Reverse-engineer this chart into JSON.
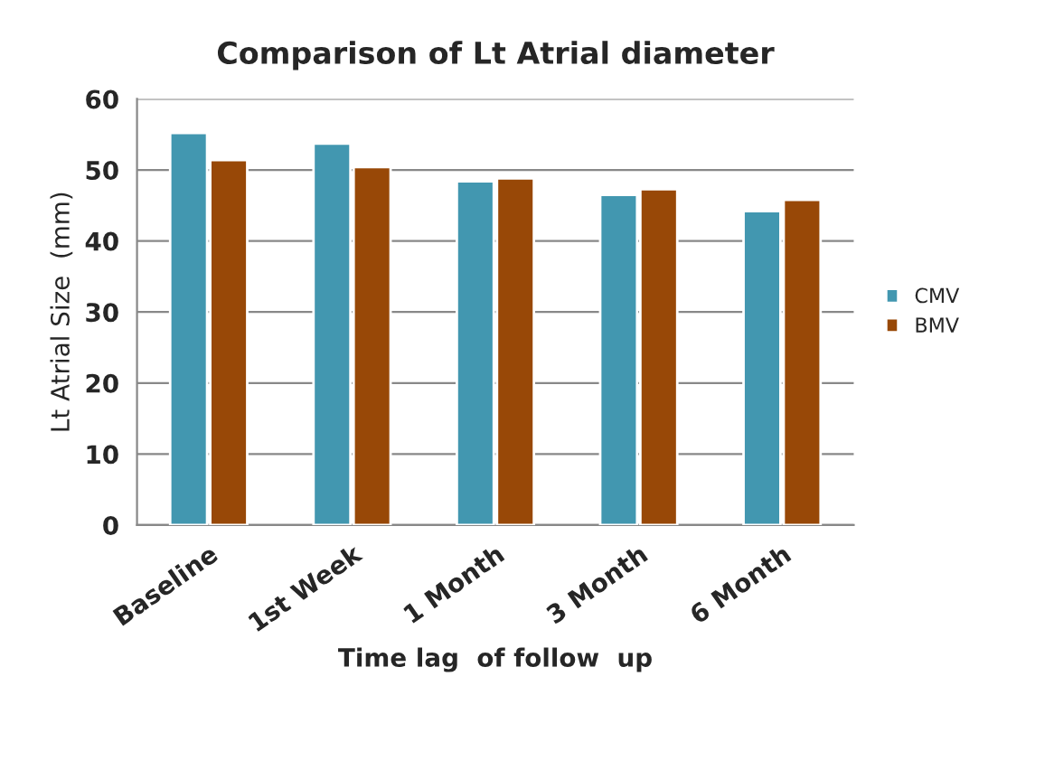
{
  "chart_data": {
    "type": "bar",
    "title": "Comparison of Lt Atrial diameter",
    "xlabel": "Time lag  of follow  up",
    "ylabel": "Lt Atrial Size  (mm)",
    "categories": [
      "Baseline",
      "1st Week",
      "1 Month",
      "3 Month",
      "6 Month"
    ],
    "series": [
      {
        "name": "CMV",
        "color": "#4297b0",
        "values": [
          55.2,
          53.7,
          48.4,
          46.5,
          44.2
        ]
      },
      {
        "name": "BMV",
        "color": "#984807",
        "values": [
          51.4,
          50.4,
          48.8,
          47.3,
          45.8
        ]
      }
    ],
    "ylim": [
      0,
      60
    ],
    "yticks": [
      0,
      10,
      20,
      30,
      40,
      50,
      60
    ],
    "grid": "y",
    "legend": "right"
  }
}
